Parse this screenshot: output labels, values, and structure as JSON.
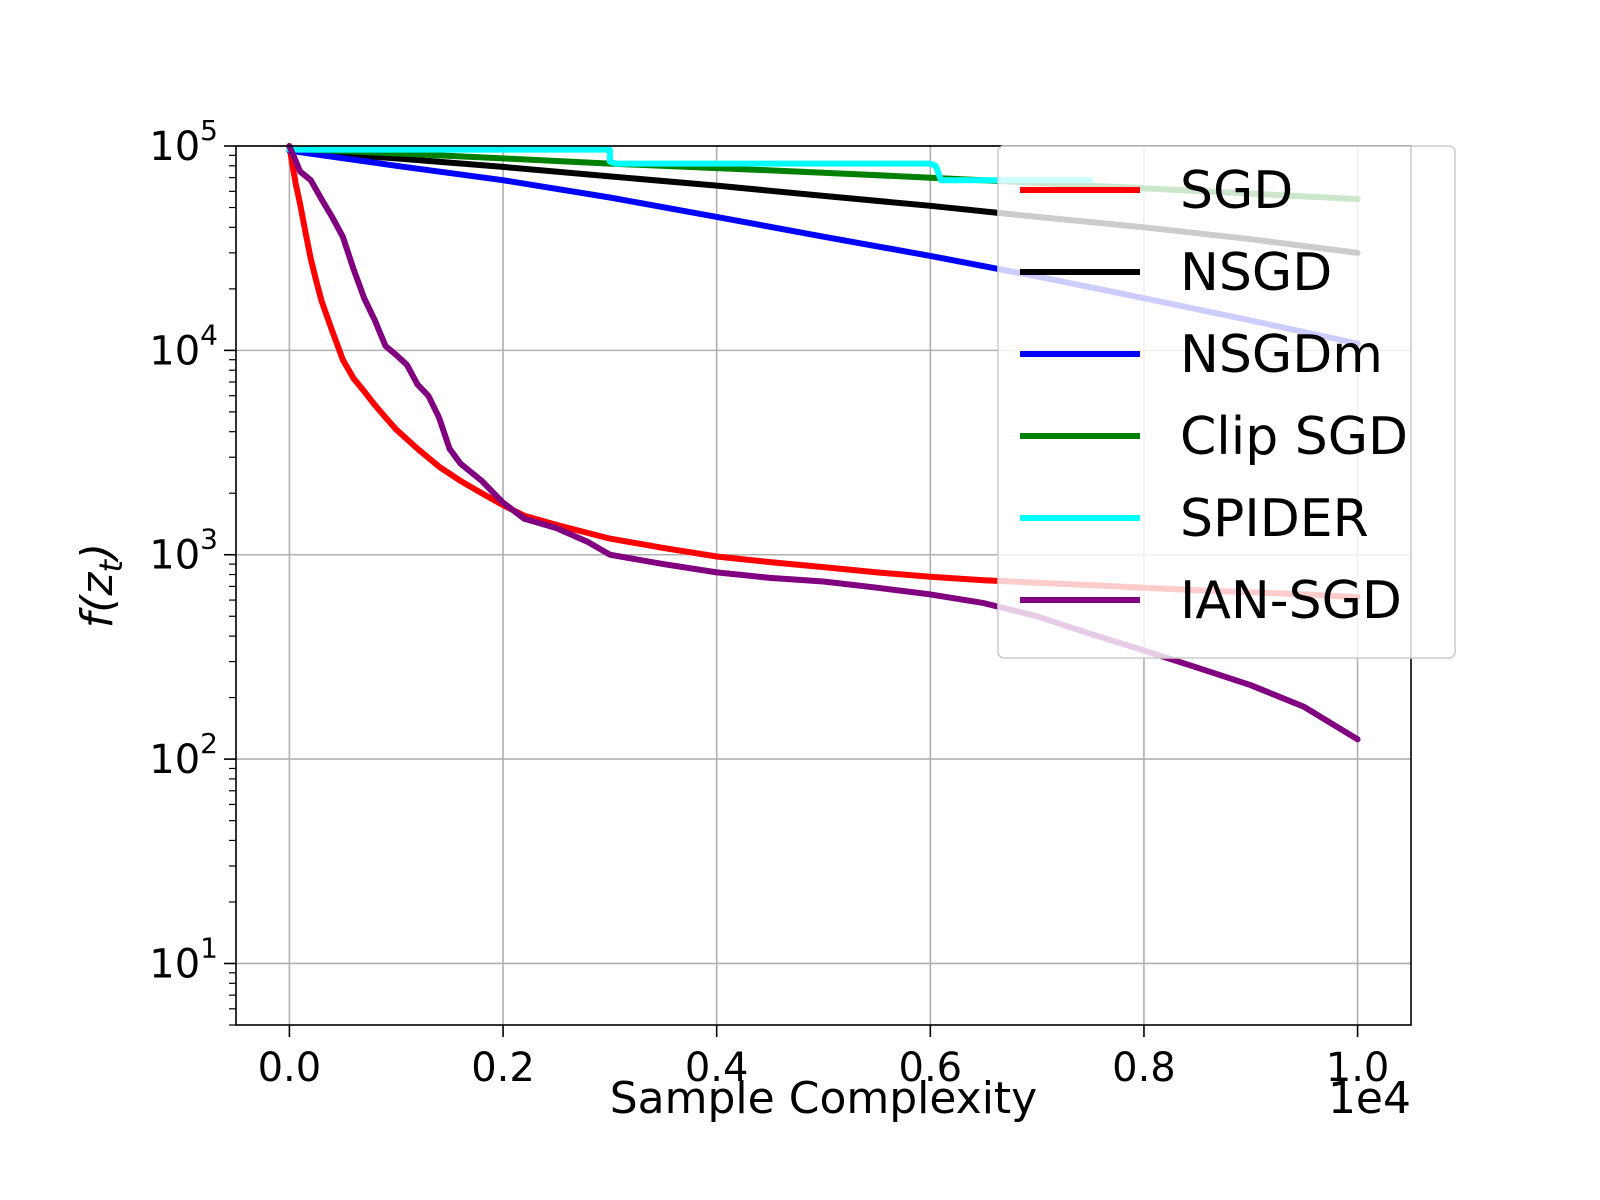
{
  "chart_data": {
    "type": "line",
    "title": "",
    "xlabel": "Sample Complexity",
    "ylabel": "f(z",
    "ylabel_subscript": "t",
    "ylabel_close": ")",
    "x_offset_label": "1e4",
    "xscale": "linear",
    "yscale": "log",
    "xlim": [
      -0.05,
      1.05
    ],
    "ylim": [
      5,
      100000
    ],
    "grid": true,
    "legend_position": "top-right",
    "x_ticks": [
      {
        "value": 0.0,
        "label": "0.0"
      },
      {
        "value": 0.2,
        "label": "0.2"
      },
      {
        "value": 0.4,
        "label": "0.4"
      },
      {
        "value": 0.6,
        "label": "0.6"
      },
      {
        "value": 0.8,
        "label": "0.8"
      },
      {
        "value": 1.0,
        "label": "1.0"
      }
    ],
    "y_ticks": [
      {
        "value": 10,
        "base": "10",
        "exp": "1"
      },
      {
        "value": 100,
        "base": "10",
        "exp": "2"
      },
      {
        "value": 1000,
        "base": "10",
        "exp": "3"
      },
      {
        "value": 10000,
        "base": "10",
        "exp": "4"
      },
      {
        "value": 100000,
        "base": "10",
        "exp": "5"
      }
    ],
    "series": [
      {
        "name": "SGD",
        "color": "#ff0000",
        "x": [
          0.0,
          0.003,
          0.006,
          0.01,
          0.015,
          0.02,
          0.025,
          0.03,
          0.04,
          0.05,
          0.06,
          0.07,
          0.08,
          0.09,
          0.1,
          0.12,
          0.14,
          0.16,
          0.18,
          0.2,
          0.22,
          0.25,
          0.3,
          0.35,
          0.4,
          0.45,
          0.5,
          0.55,
          0.6,
          0.65,
          0.7,
          0.75,
          0.8,
          0.85,
          0.9,
          0.95,
          1.0
        ],
        "y": [
          100000,
          80000,
          65000,
          52000,
          38000,
          28000,
          22000,
          17500,
          12500,
          9000,
          7300,
          6300,
          5400,
          4700,
          4100,
          3300,
          2700,
          2300,
          2000,
          1750,
          1550,
          1400,
          1200,
          1080,
          980,
          920,
          870,
          820,
          780,
          750,
          730,
          710,
          690,
          670,
          655,
          640,
          620
        ]
      },
      {
        "name": "NSGD",
        "color": "#000000",
        "x": [
          0.0,
          0.1,
          0.2,
          0.3,
          0.4,
          0.5,
          0.6,
          0.7,
          0.8,
          0.9,
          1.0
        ],
        "y": [
          95000,
          87000,
          79000,
          71000,
          64000,
          57000,
          51000,
          45000,
          40000,
          35000,
          30000
        ]
      },
      {
        "name": "NSGDm",
        "color": "#0000ff",
        "x": [
          0.0,
          0.1,
          0.2,
          0.3,
          0.4,
          0.5,
          0.6,
          0.7,
          0.8,
          0.9,
          1.0
        ],
        "y": [
          95000,
          80000,
          68000,
          56000,
          45000,
          36000,
          29000,
          23000,
          18000,
          14000,
          10800
        ]
      },
      {
        "name": "Clip SGD",
        "color": "#008000",
        "x": [
          0.0,
          0.1,
          0.2,
          0.3,
          0.4,
          0.5,
          0.6,
          0.7,
          0.8,
          0.9,
          1.0
        ],
        "y": [
          97000,
          92000,
          87000,
          82000,
          78000,
          74000,
          70000,
          66000,
          62000,
          58500,
          55000
        ]
      },
      {
        "name": "SPIDER",
        "color": "#00ffff",
        "x": [
          0.0,
          0.3,
          0.3,
          0.305,
          0.6,
          0.605,
          0.61,
          0.7,
          0.75
        ],
        "y": [
          96000,
          96000,
          84000,
          82000,
          82000,
          80000,
          68000,
          68000,
          68000
        ]
      },
      {
        "name": "IAN-SGD",
        "color": "#800080",
        "x": [
          0.0,
          0.01,
          0.02,
          0.03,
          0.04,
          0.05,
          0.06,
          0.07,
          0.08,
          0.09,
          0.1,
          0.11,
          0.12,
          0.13,
          0.14,
          0.15,
          0.16,
          0.18,
          0.2,
          0.22,
          0.25,
          0.28,
          0.3,
          0.35,
          0.4,
          0.45,
          0.5,
          0.55,
          0.6,
          0.65,
          0.7,
          0.75,
          0.8,
          0.85,
          0.9,
          0.95,
          1.0
        ],
        "y": [
          100000,
          75000,
          68000,
          55000,
          45000,
          36000,
          25000,
          18000,
          14000,
          10500,
          9500,
          8500,
          6800,
          6000,
          4700,
          3300,
          2800,
          2300,
          1800,
          1500,
          1350,
          1150,
          1000,
          900,
          820,
          770,
          740,
          690,
          640,
          580,
          500,
          410,
          340,
          280,
          230,
          180,
          125
        ]
      }
    ]
  }
}
